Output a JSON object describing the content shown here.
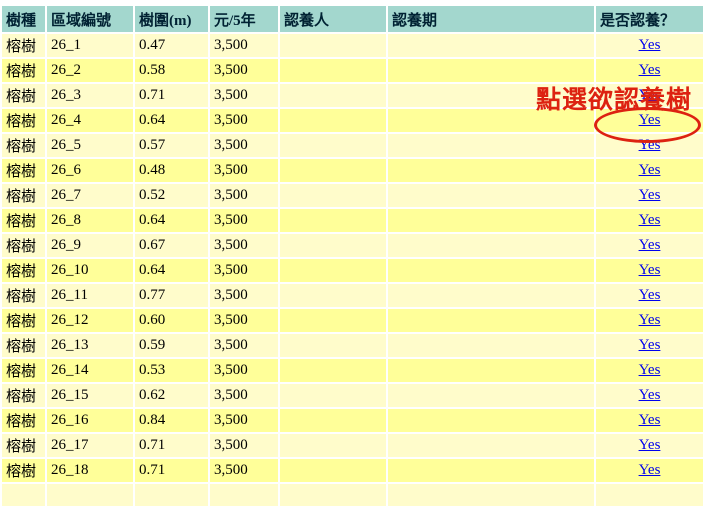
{
  "colors": {
    "header_bg": "#a3d7ce",
    "header_text": "#002233",
    "row_odd_bg": "#fffccb",
    "row_even_bg": "#ffff99",
    "body_text": "#000000",
    "link_blue": "#0000ee",
    "annotation_red": "#dd2211"
  },
  "table": {
    "headers": [
      {
        "key": "species",
        "label": "樹種"
      },
      {
        "key": "area-id",
        "label": "區域編號"
      },
      {
        "key": "girth",
        "label": "樹圍(m)"
      },
      {
        "key": "price",
        "label": "元/5年"
      },
      {
        "key": "adopter",
        "label": "認養人"
      },
      {
        "key": "period",
        "label": "認養期"
      },
      {
        "key": "adopt",
        "label": "是否認養？"
      }
    ],
    "rows": [
      {
        "species": "榕樹",
        "area_id": "26_1",
        "girth": "0.47",
        "price": "3,500",
        "adopter": "",
        "period": "",
        "adopt_link": "Yes"
      },
      {
        "species": "榕樹",
        "area_id": "26_2",
        "girth": "0.58",
        "price": "3,500",
        "adopter": "",
        "period": "",
        "adopt_link": "Yes"
      },
      {
        "species": "榕樹",
        "area_id": "26_3",
        "girth": "0.71",
        "price": "3,500",
        "adopter": "",
        "period": "",
        "adopt_link": "Yes"
      },
      {
        "species": "榕樹",
        "area_id": "26_4",
        "girth": "0.64",
        "price": "3,500",
        "adopter": "",
        "period": "",
        "adopt_link": "Yes"
      },
      {
        "species": "榕樹",
        "area_id": "26_5",
        "girth": "0.57",
        "price": "3,500",
        "adopter": "",
        "period": "",
        "adopt_link": "Yes"
      },
      {
        "species": "榕樹",
        "area_id": "26_6",
        "girth": "0.48",
        "price": "3,500",
        "adopter": "",
        "period": "",
        "adopt_link": "Yes"
      },
      {
        "species": "榕樹",
        "area_id": "26_7",
        "girth": "0.52",
        "price": "3,500",
        "adopter": "",
        "period": "",
        "adopt_link": "Yes"
      },
      {
        "species": "榕樹",
        "area_id": "26_8",
        "girth": "0.64",
        "price": "3,500",
        "adopter": "",
        "period": "",
        "adopt_link": "Yes"
      },
      {
        "species": "榕樹",
        "area_id": "26_9",
        "girth": "0.67",
        "price": "3,500",
        "adopter": "",
        "period": "",
        "adopt_link": "Yes"
      },
      {
        "species": "榕樹",
        "area_id": "26_10",
        "girth": "0.64",
        "price": "3,500",
        "adopter": "",
        "period": "",
        "adopt_link": "Yes"
      },
      {
        "species": "榕樹",
        "area_id": "26_11",
        "girth": "0.77",
        "price": "3,500",
        "adopter": "",
        "period": "",
        "adopt_link": "Yes"
      },
      {
        "species": "榕樹",
        "area_id": "26_12",
        "girth": "0.60",
        "price": "3,500",
        "adopter": "",
        "period": "",
        "adopt_link": "Yes"
      },
      {
        "species": "榕樹",
        "area_id": "26_13",
        "girth": "0.59",
        "price": "3,500",
        "adopter": "",
        "period": "",
        "adopt_link": "Yes"
      },
      {
        "species": "榕樹",
        "area_id": "26_14",
        "girth": "0.53",
        "price": "3,500",
        "adopter": "",
        "period": "",
        "adopt_link": "Yes"
      },
      {
        "species": "榕樹",
        "area_id": "26_15",
        "girth": "0.62",
        "price": "3,500",
        "adopter": "",
        "period": "",
        "adopt_link": "Yes"
      },
      {
        "species": "榕樹",
        "area_id": "26_16",
        "girth": "0.84",
        "price": "3,500",
        "adopter": "",
        "period": "",
        "adopt_link": "Yes"
      },
      {
        "species": "榕樹",
        "area_id": "26_17",
        "girth": "0.71",
        "price": "3,500",
        "adopter": "",
        "period": "",
        "adopt_link": "Yes"
      },
      {
        "species": "榕樹",
        "area_id": "26_18",
        "girth": "0.71",
        "price": "3,500",
        "adopter": "",
        "period": "",
        "adopt_link": "Yes"
      }
    ]
  },
  "annotation": {
    "callout": "點選欲認養樹",
    "circled_row": "26_4"
  }
}
